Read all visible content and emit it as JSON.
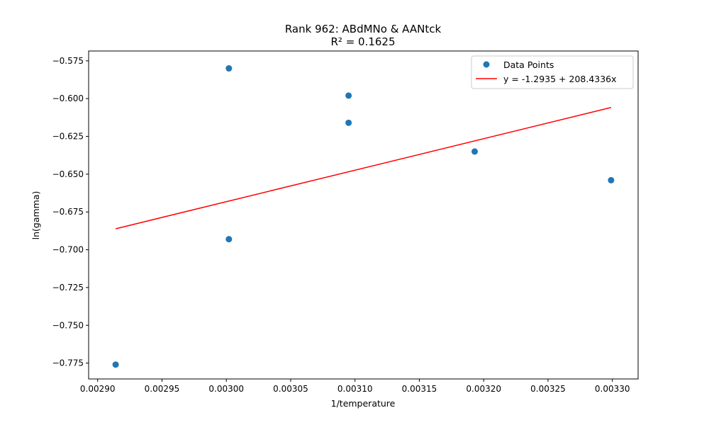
{
  "chart_data": {
    "type": "scatter",
    "title": "Rank 962: ABdMNo & AANtck",
    "subtitle": "R² = 0.1625",
    "xlabel": "1/temperature",
    "ylabel": "ln(gamma)",
    "xlim": [
      0.002893,
      0.00332
    ],
    "ylim": [
      -0.7855,
      -0.5685
    ],
    "xticks": [
      0.0029,
      0.00295,
      0.003,
      0.00305,
      0.0031,
      0.00315,
      0.0032,
      0.00325,
      0.0033
    ],
    "xtick_labels": [
      "0.00290",
      "0.00295",
      "0.00300",
      "0.00305",
      "0.00310",
      "0.00315",
      "0.00320",
      "0.00325",
      "0.00330"
    ],
    "yticks": [
      -0.575,
      -0.6,
      -0.625,
      -0.65,
      -0.675,
      -0.7,
      -0.725,
      -0.75,
      -0.775
    ],
    "ytick_labels": [
      "−0.575",
      "−0.600",
      "−0.625",
      "−0.650",
      "−0.675",
      "−0.700",
      "−0.725",
      "−0.750",
      "−0.775"
    ],
    "series": [
      {
        "name": "Data Points",
        "kind": "scatter",
        "color": "#1f77b4",
        "x": [
          0.002914,
          0.003002,
          0.003002,
          0.003095,
          0.003095,
          0.003193,
          0.003299
        ],
        "y": [
          -0.776,
          -0.58,
          -0.693,
          -0.598,
          -0.616,
          -0.635,
          -0.654
        ]
      },
      {
        "name": "y = -1.2935 + 208.4336x",
        "kind": "line",
        "color": "#ff0000",
        "intercept": -1.2935,
        "slope": 208.4336,
        "x": [
          0.002914,
          0.003299
        ]
      }
    ],
    "legend": "top-right",
    "grid": false
  }
}
